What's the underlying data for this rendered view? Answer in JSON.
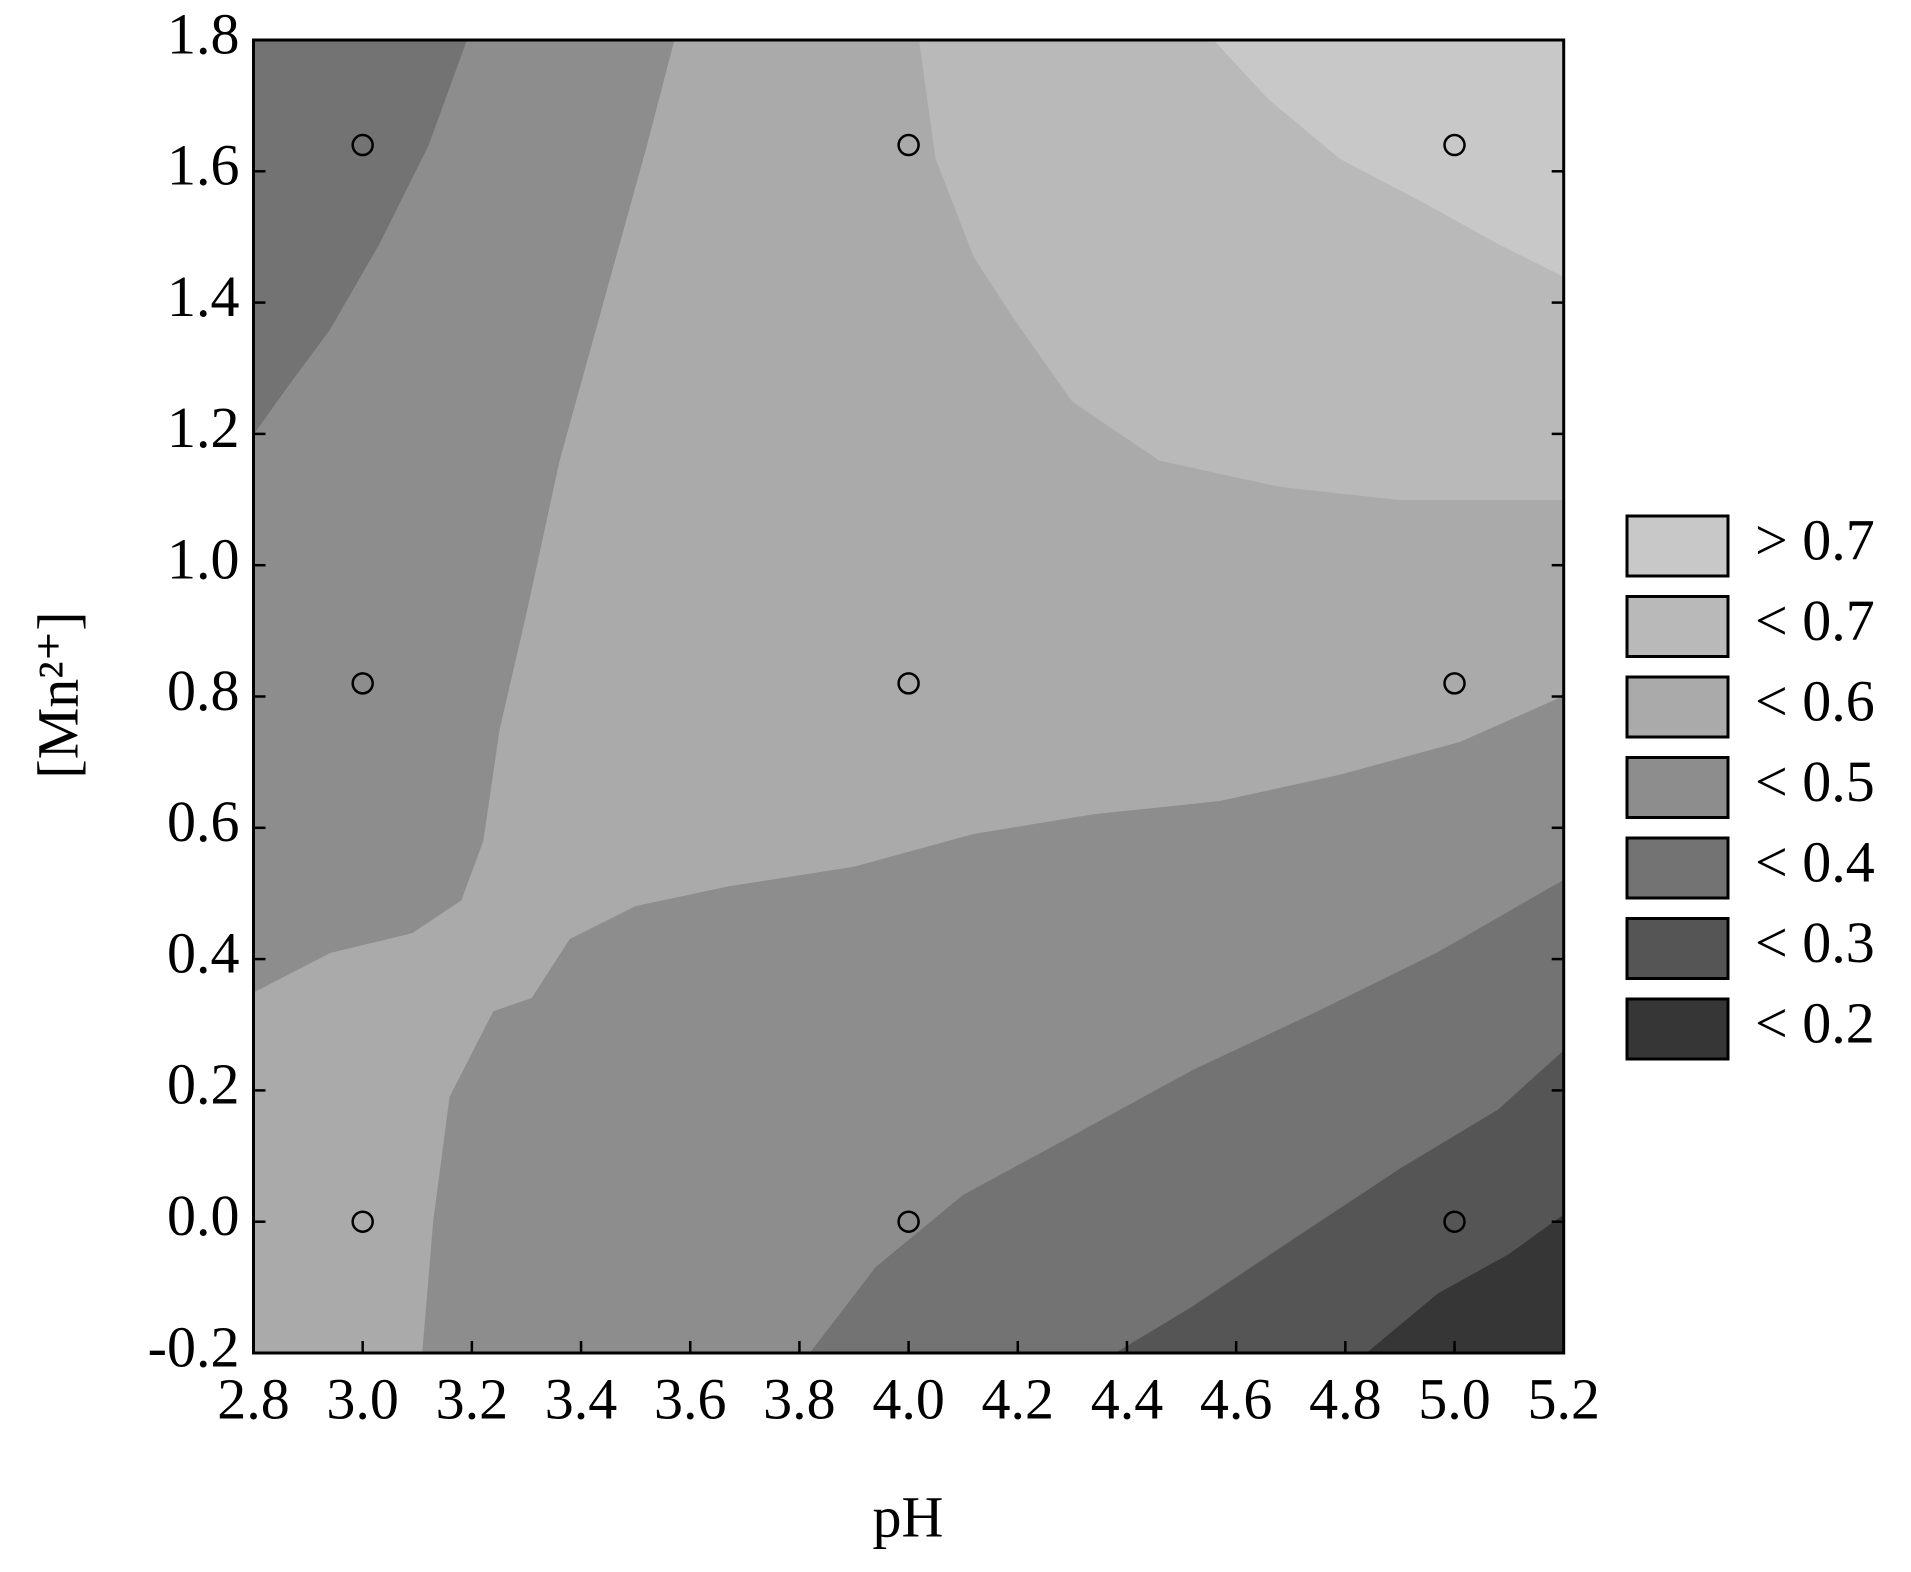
{
  "chart_data": {
    "type": "contour",
    "xlabel": "pH",
    "ylabel": "[Mn²⁺]",
    "xlim": [
      2.8,
      5.2
    ],
    "ylim": [
      -0.2,
      1.8
    ],
    "xticks": [
      2.8,
      {
        "value": 3,
        "label": "3.0"
      },
      3.2,
      3.4,
      3.6,
      3.8,
      {
        "value": 4,
        "label": "4.0"
      },
      4.2,
      4.4,
      4.6,
      4.8,
      {
        "value": 5,
        "label": "5.0"
      },
      5.2
    ],
    "yticks": [
      -0.2,
      {
        "value": 0,
        "label": "0.0"
      },
      0.2,
      0.4,
      0.6,
      0.8,
      {
        "value": 1,
        "label": "1.0"
      },
      1.2,
      1.4,
      1.6,
      1.8
    ],
    "levels": [
      {
        "label": "> 0.7",
        "color": "#c8c8c8",
        "regions": [
          {
            "x": [
              4.56,
              4.66,
              4.79,
              4.95,
              5.08,
              5.2,
              5.2
            ],
            "y": [
              1.8,
              1.71,
              1.62,
              1.55,
              1.49,
              1.44,
              1.8
            ]
          }
        ]
      },
      {
        "label": "< 0.7",
        "color": "#b9b9b9",
        "regions": [
          {
            "x": [
              4.02,
              4.05,
              4.12,
              4.19,
              4.3,
              4.46,
              4.68,
              4.9,
              5.2,
              5.2
            ],
            "y": [
              1.8,
              1.62,
              1.47,
              1.38,
              1.25,
              1.16,
              1.12,
              1.1,
              1.1,
              1.8
            ]
          }
        ]
      },
      {
        "label": "< 0.6",
        "color": "#aaaaaa",
        "regions": [
          {
            "x": [
              2.8,
              5.2,
              5.2,
              2.8
            ],
            "y": [
              -0.2,
              -0.2,
              1.8,
              1.8
            ]
          }
        ]
      },
      {
        "label": "< 0.5",
        "color": "#8d8d8d",
        "regions": [
          {
            "x": [
              2.8,
              3.57,
              3.52,
              3.44,
              3.36,
              3.3,
              3.25,
              3.22,
              3.18,
              3.09,
              2.94,
              2.8
            ],
            "y": [
              1.8,
              1.8,
              1.64,
              1.4,
              1.16,
              0.93,
              0.75,
              0.58,
              0.49,
              0.44,
              0.41,
              0.35
            ]
          },
          {
            "x": [
              3.11,
              3.13,
              3.16,
              3.24,
              3.31,
              3.38,
              3.5,
              3.67,
              3.9,
              4.12,
              4.34,
              4.57,
              4.79,
              5.01,
              5.2,
              5.2
            ],
            "y": [
              -0.2,
              0,
              0.19,
              0.32,
              0.34,
              0.43,
              0.48,
              0.51,
              0.54,
              0.59,
              0.62,
              0.64,
              0.68,
              0.73,
              0.8,
              -0.2
            ]
          }
        ]
      },
      {
        "label": "< 0.4",
        "color": "#737373",
        "regions": [
          {
            "x": [
              2.8,
              3.19,
              3.12,
              3.03,
              2.94,
              2.86,
              2.8
            ],
            "y": [
              1.8,
              1.8,
              1.64,
              1.49,
              1.36,
              1.27,
              1.2
            ]
          },
          {
            "x": [
              3.82,
              3.94,
              4.1,
              4.3,
              4.52,
              4.75,
              4.97,
              5.2,
              5.2
            ],
            "y": [
              -0.2,
              -0.07,
              0.04,
              0.13,
              0.23,
              0.32,
              0.41,
              0.52,
              -0.2
            ]
          }
        ]
      },
      {
        "label": "< 0.3",
        "color": "#555555",
        "regions": [
          {
            "x": [
              4.38,
              4.52,
              4.7,
              4.9,
              5.08,
              5.2,
              5.2
            ],
            "y": [
              -0.2,
              -0.13,
              -0.03,
              0.08,
              0.17,
              0.26,
              -0.2
            ]
          }
        ]
      },
      {
        "label": "< 0.2",
        "color": "#363636",
        "regions": [
          {
            "x": [
              4.84,
              4.97,
              5.1,
              5.2,
              5.2
            ],
            "y": [
              -0.2,
              -0.11,
              -0.05,
              0.01,
              -0.2
            ]
          }
        ]
      }
    ],
    "points": {
      "x": [
        3,
        4,
        5,
        3,
        4,
        5,
        3,
        4,
        5
      ],
      "y": [
        1.64,
        1.64,
        1.64,
        0.82,
        0.82,
        0.82,
        0,
        0,
        0
      ]
    }
  }
}
